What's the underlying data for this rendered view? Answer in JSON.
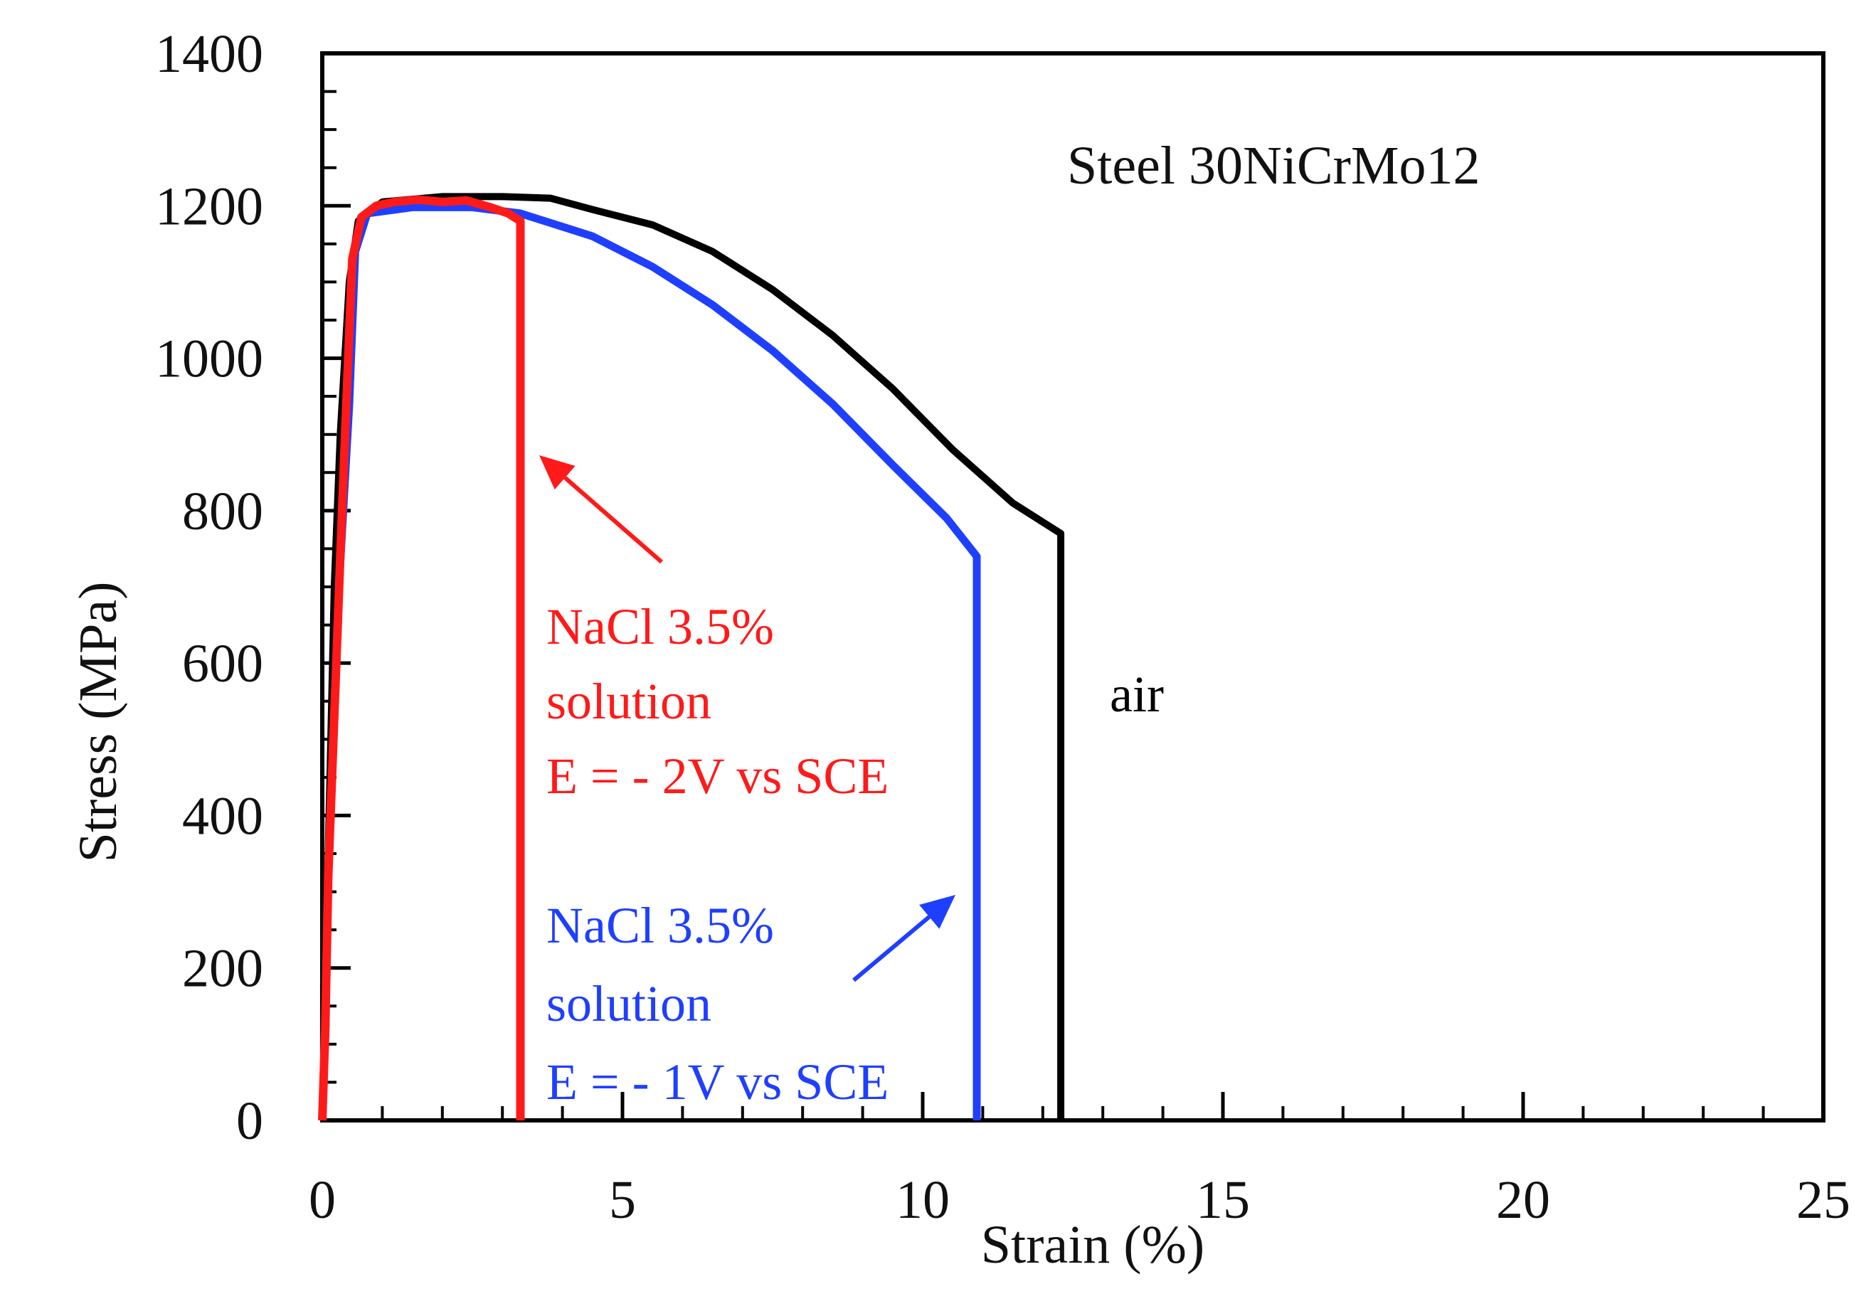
{
  "chart_data": {
    "type": "line",
    "title": "Steel 30NiCrMo12",
    "xlabel": "Strain (%)",
    "ylabel": "Stress (MPa)",
    "xlim": [
      0,
      25
    ],
    "ylim": [
      0,
      1400
    ],
    "x_ticks": [
      0,
      5,
      10,
      15,
      20,
      25
    ],
    "y_ticks": [
      0,
      200,
      400,
      600,
      800,
      1000,
      1200,
      1400
    ],
    "x_minor_step": 1,
    "y_minor_step": 50,
    "grid": false,
    "series": [
      {
        "name": "air",
        "label": "air",
        "color": "#000000",
        "points": [
          [
            0,
            0
          ],
          [
            0.06,
            120
          ],
          [
            0.1,
            350
          ],
          [
            0.2,
            700
          ],
          [
            0.3,
            900
          ],
          [
            0.45,
            1100
          ],
          [
            0.6,
            1180
          ],
          [
            1.0,
            1205
          ],
          [
            2.0,
            1212
          ],
          [
            3.0,
            1212
          ],
          [
            3.8,
            1210
          ],
          [
            4.5,
            1195
          ],
          [
            5.5,
            1175
          ],
          [
            6.5,
            1140
          ],
          [
            7.5,
            1090
          ],
          [
            8.5,
            1030
          ],
          [
            9.5,
            960
          ],
          [
            10.5,
            880
          ],
          [
            11.5,
            810
          ],
          [
            12.3,
            770
          ],
          [
            12.3,
            0
          ]
        ]
      },
      {
        "name": "NaCl 3.5% solution, E = -1V vs SCE",
        "label_lines": [
          "NaCl 3.5%",
          "solution",
          "E = - 1V vs SCE"
        ],
        "color": "#1f3fff",
        "points": [
          [
            0,
            0
          ],
          [
            0.05,
            120
          ],
          [
            0.1,
            330
          ],
          [
            0.2,
            530
          ],
          [
            0.3,
            730
          ],
          [
            0.45,
            940
          ],
          [
            0.55,
            1140
          ],
          [
            0.75,
            1190
          ],
          [
            1.5,
            1198
          ],
          [
            2.5,
            1198
          ],
          [
            3.3,
            1190
          ],
          [
            4.5,
            1160
          ],
          [
            5.5,
            1120
          ],
          [
            6.5,
            1070
          ],
          [
            7.5,
            1010
          ],
          [
            8.5,
            940
          ],
          [
            9.5,
            860
          ],
          [
            10.4,
            790
          ],
          [
            10.9,
            740
          ],
          [
            10.9,
            0
          ]
        ]
      },
      {
        "name": "NaCl 3.5% solution, E = -2V vs SCE",
        "label_lines": [
          "NaCl 3.5%",
          "solution",
          "E = - 2V vs SCE"
        ],
        "color": "#ff1a1a",
        "points": [
          [
            0,
            0
          ],
          [
            0.05,
            120
          ],
          [
            0.1,
            320
          ],
          [
            0.2,
            530
          ],
          [
            0.3,
            740
          ],
          [
            0.4,
            940
          ],
          [
            0.5,
            1130
          ],
          [
            0.65,
            1185
          ],
          [
            0.9,
            1200
          ],
          [
            1.2,
            1205
          ],
          [
            1.6,
            1208
          ],
          [
            2.0,
            1205
          ],
          [
            2.4,
            1207
          ],
          [
            2.8,
            1198
          ],
          [
            3.1,
            1190
          ],
          [
            3.3,
            1180
          ],
          [
            3.3,
            0
          ]
        ]
      }
    ],
    "annotations": [
      {
        "text": "air",
        "color": "#000000"
      }
    ]
  }
}
